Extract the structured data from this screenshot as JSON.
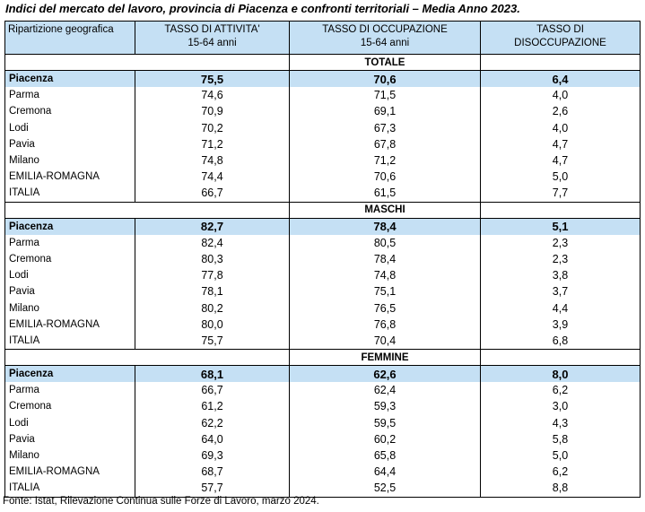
{
  "title": "Indici del mercato del lavoro, provincia di Piacenza e confronti territoriali – Media Anno 2023.",
  "headers": {
    "area": "Ripartizione geografica",
    "attivita": [
      "TASSO DI ATTIVITA'",
      "15-64 anni"
    ],
    "occupazione": [
      "TASSO DI OCCUPAZIONE",
      "15-64 anni"
    ],
    "disoccupazione": [
      "TASSO DI",
      "DISOCCUPAZIONE"
    ]
  },
  "sections": [
    {
      "label": "TOTALE",
      "rows": [
        {
          "area": "Piacenza",
          "attivita": "75,5",
          "occupazione": "70,6",
          "disoccupazione": "6,4"
        },
        {
          "area": "Parma",
          "attivita": "74,6",
          "occupazione": "71,5",
          "disoccupazione": "4,0"
        },
        {
          "area": "Cremona",
          "attivita": "70,9",
          "occupazione": "69,1",
          "disoccupazione": "2,6"
        },
        {
          "area": "Lodi",
          "attivita": "70,2",
          "occupazione": "67,3",
          "disoccupazione": "4,0"
        },
        {
          "area": "Pavia",
          "attivita": "71,2",
          "occupazione": "67,8",
          "disoccupazione": "4,7"
        },
        {
          "area": "Milano",
          "attivita": "74,8",
          "occupazione": "71,2",
          "disoccupazione": "4,7"
        },
        {
          "area": "EMILIA-ROMAGNA",
          "attivita": "74,4",
          "occupazione": "70,6",
          "disoccupazione": "5,0"
        },
        {
          "area": "ITALIA",
          "attivita": "66,7",
          "occupazione": "61,5",
          "disoccupazione": "7,7"
        }
      ]
    },
    {
      "label": "MASCHI",
      "rows": [
        {
          "area": "Piacenza",
          "attivita": "82,7",
          "occupazione": "78,4",
          "disoccupazione": "5,1"
        },
        {
          "area": "Parma",
          "attivita": "82,4",
          "occupazione": "80,5",
          "disoccupazione": "2,3"
        },
        {
          "area": "Cremona",
          "attivita": "80,3",
          "occupazione": "78,4",
          "disoccupazione": "2,3"
        },
        {
          "area": "Lodi",
          "attivita": "77,8",
          "occupazione": "74,8",
          "disoccupazione": "3,8"
        },
        {
          "area": "Pavia",
          "attivita": "78,1",
          "occupazione": "75,1",
          "disoccupazione": "3,7"
        },
        {
          "area": "Milano",
          "attivita": "80,2",
          "occupazione": "76,5",
          "disoccupazione": "4,4"
        },
        {
          "area": "EMILIA-ROMAGNA",
          "attivita": "80,0",
          "occupazione": "76,8",
          "disoccupazione": "3,9"
        },
        {
          "area": "ITALIA",
          "attivita": "75,7",
          "occupazione": "70,4",
          "disoccupazione": "6,8"
        }
      ]
    },
    {
      "label": "FEMMINE",
      "rows": [
        {
          "area": "Piacenza",
          "attivita": "68,1",
          "occupazione": "62,6",
          "disoccupazione": "8,0"
        },
        {
          "area": "Parma",
          "attivita": "66,7",
          "occupazione": "62,4",
          "disoccupazione": "6,2"
        },
        {
          "area": "Cremona",
          "attivita": "61,2",
          "occupazione": "59,3",
          "disoccupazione": "3,0"
        },
        {
          "area": "Lodi",
          "attivita": "62,2",
          "occupazione": "59,5",
          "disoccupazione": "4,3"
        },
        {
          "area": "Pavia",
          "attivita": "64,0",
          "occupazione": "60,2",
          "disoccupazione": "5,8"
        },
        {
          "area": "Milano",
          "attivita": "69,3",
          "occupazione": "65,8",
          "disoccupazione": "5,0"
        },
        {
          "area": "EMILIA-ROMAGNA",
          "attivita": "68,7",
          "occupazione": "64,4",
          "disoccupazione": "6,2"
        },
        {
          "area": "ITALIA",
          "attivita": "57,7",
          "occupazione": "52,5",
          "disoccupazione": "8,8"
        }
      ]
    }
  ],
  "source": "Fonte: Istat, Rilevazione Continua sulle Forze di Lavoro, marzo 2024.",
  "colors": {
    "highlight": "#c5e0f4",
    "border": "#000000"
  }
}
